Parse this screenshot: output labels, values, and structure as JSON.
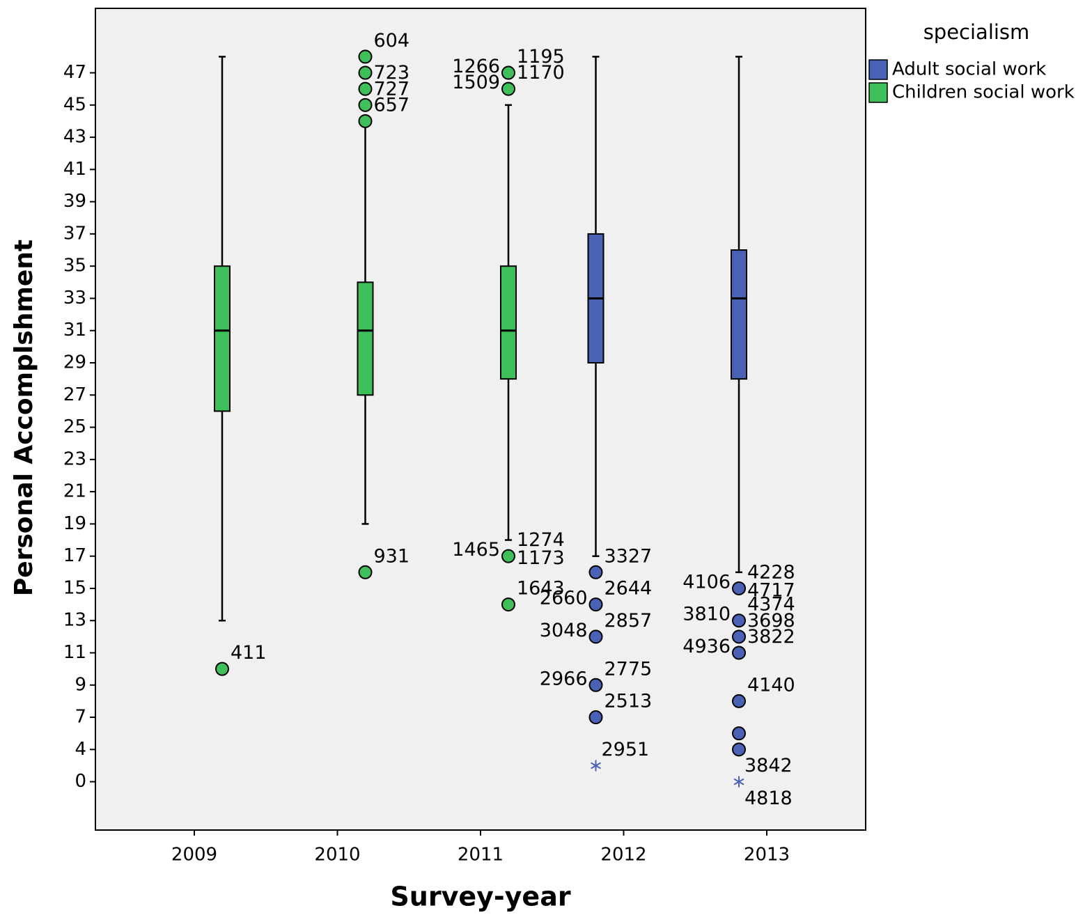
{
  "chart_data": {
    "type": "boxplot",
    "x_label": "Survey-year",
    "y_label": "Personal Accomplshment",
    "legend_title": "specialism",
    "categories": [
      "2009",
      "2010",
      "2011",
      "2012",
      "2013"
    ],
    "ylim": [
      -6,
      51
    ],
    "yticks": [
      0,
      4,
      7,
      9,
      11,
      13,
      15,
      17,
      19,
      21,
      23,
      25,
      27,
      29,
      31,
      33,
      35,
      37,
      39,
      41,
      43,
      45,
      47
    ],
    "series": [
      {
        "name": "Adult social work",
        "color": "#4a62b5",
        "boxes": [
          null,
          null,
          null,
          {
            "whisker_low": 17,
            "q1": 29,
            "median": 33,
            "q3": 37,
            "whisker_high": 48,
            "outliers": [
              {
                "value": 16,
                "labels": [
                  "3327"
                ]
              },
              {
                "value": 14,
                "labels": [
                  "2644",
                  "2660"
                ]
              },
              {
                "value": 12,
                "labels": [
                  "2857",
                  "3048"
                ]
              },
              {
                "value": 9,
                "labels": [
                  "2775",
                  "2966"
                ]
              },
              {
                "value": 7,
                "labels": [
                  "2513"
                ]
              }
            ],
            "extremes": [
              {
                "value": 2,
                "labels": [
                  "2951"
                ]
              }
            ]
          },
          {
            "whisker_low": 16,
            "q1": 28,
            "median": 33,
            "q3": 36,
            "whisker_high": 48,
            "outliers": [
              {
                "value": 15,
                "labels": [
                  "4228",
                  "4106",
                  "4717"
                ]
              },
              {
                "value": 13,
                "labels": [
                  "4374",
                  "3810"
                ]
              },
              {
                "value": 12,
                "labels": [
                  "3698"
                ]
              },
              {
                "value": 11,
                "labels": [
                  "3822",
                  "4936"
                ]
              },
              {
                "value": 8,
                "labels": [
                  "4140"
                ]
              },
              {
                "value": 5.5
              },
              {
                "value": 4
              }
            ],
            "extremes": [
              {
                "value": 0,
                "labels": [
                  "3842",
                  "4818"
                ]
              }
            ]
          }
        ]
      },
      {
        "name": "Children social work",
        "color": "#3fbf5a",
        "boxes": [
          {
            "whisker_low": 13,
            "q1": 26,
            "median": 31,
            "q3": 35,
            "whisker_high": 48,
            "outliers": [
              {
                "value": 10,
                "labels": [
                  "411"
                ]
              }
            ]
          },
          {
            "whisker_low": 19,
            "q1": 27,
            "median": 31,
            "q3": 34,
            "whisker_high": 44,
            "outliers": [
              {
                "value": 48,
                "labels": [
                  "604"
                ]
              },
              {
                "value": 47
              },
              {
                "value": 46,
                "labels": [
                  "723"
                ]
              },
              {
                "value": 45,
                "labels": [
                  "727"
                ]
              },
              {
                "value": 44,
                "labels": [
                  "657"
                ]
              },
              {
                "value": 16,
                "labels": [
                  "931"
                ]
              }
            ]
          },
          {
            "whisker_low": 18,
            "q1": 28,
            "median": 31,
            "q3": 35,
            "whisker_high": 45,
            "outliers": [
              {
                "value": 47,
                "labels": [
                  "1195",
                  "1266"
                ]
              },
              {
                "value": 46,
                "labels": [
                  "1170",
                  "1509"
                ]
              },
              {
                "value": 17,
                "labels": [
                  "1274",
                  "1465",
                  "1173"
                ]
              },
              {
                "value": 14,
                "labels": [
                  "1643"
                ]
              }
            ]
          },
          null,
          null
        ]
      }
    ]
  }
}
